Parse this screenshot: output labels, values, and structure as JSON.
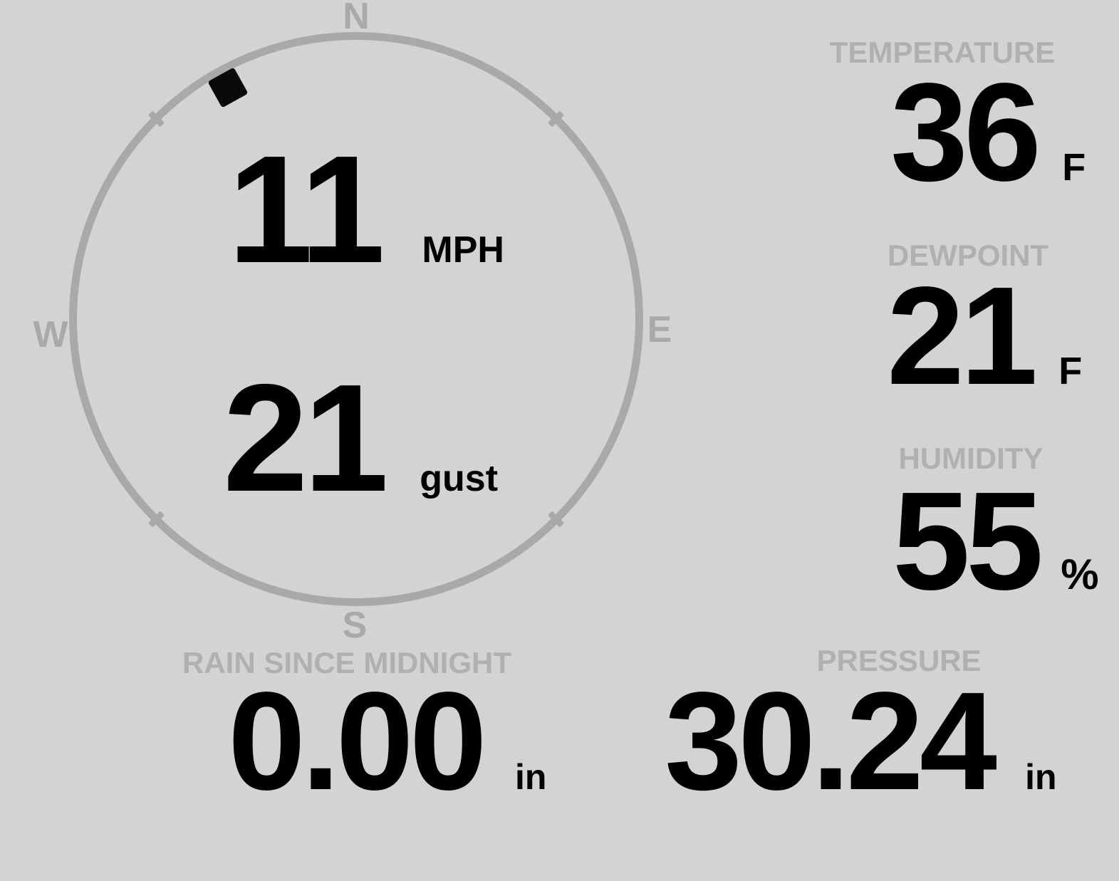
{
  "theme": {
    "background": "#d3d3d3",
    "label_color": "#b0b0b0",
    "compass_color": "#a9a9a9",
    "value_color": "#000000",
    "marker_color": "#0a0a0a"
  },
  "compass": {
    "cardinals": {
      "north": "N",
      "east": "E",
      "south": "S",
      "west": "W"
    },
    "direction_degrees": 331,
    "wind_speed": {
      "value": "11",
      "unit": "MPH"
    },
    "wind_gust": {
      "value": "21",
      "unit": "gust"
    }
  },
  "metrics": {
    "temperature": {
      "label": "TEMPERATURE",
      "value": "36",
      "unit": "F"
    },
    "dewpoint": {
      "label": "DEWPOINT",
      "value": "21",
      "unit": "F"
    },
    "humidity": {
      "label": "HUMIDITY",
      "value": "55",
      "unit": "%"
    },
    "rain": {
      "label": "RAIN SINCE MIDNIGHT",
      "value": "0.00",
      "unit": "in"
    },
    "pressure": {
      "label": "PRESSURE",
      "value": "30.24",
      "unit": "in"
    }
  }
}
